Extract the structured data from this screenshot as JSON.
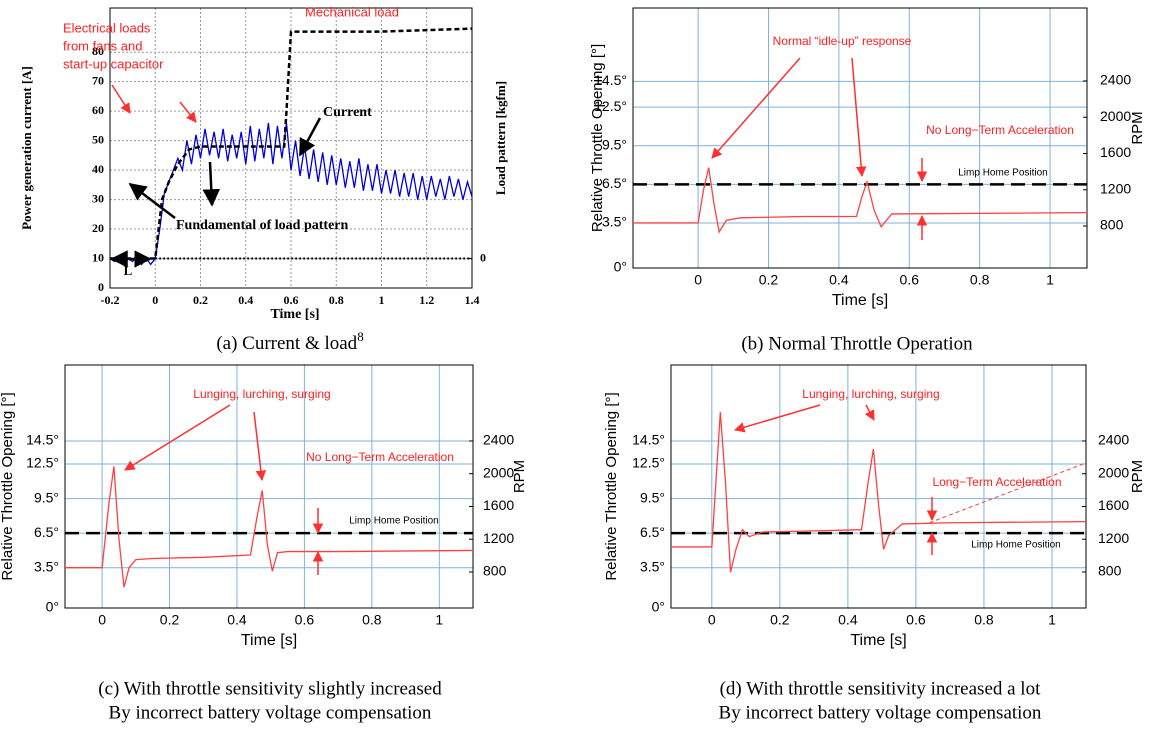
{
  "chart_data": [
    {
      "type": "line",
      "xlabel": "Time [s]",
      "ylabel": "Power generation current [A]",
      "y2label": "Load pattern [kgfm]",
      "caption": [
        "(a) Current & load",
        "8"
      ],
      "xlim": [
        -0.2,
        1.4
      ],
      "xticks": [
        -0.2,
        0,
        0.2,
        0.4,
        0.6,
        0.8,
        1,
        1.2,
        1.4
      ],
      "ylim": [
        0,
        95
      ],
      "yticks": [
        0,
        10,
        20,
        30,
        40,
        50,
        60,
        70,
        80
      ],
      "y2lim": [
        -10,
        85
      ],
      "y2ticks": [
        0
      ],
      "grid": true,
      "grid_color": "#999999",
      "annotations": [
        "Electrical loads",
        "from fans and",
        "start-up capacitor",
        "Mechanical  load",
        "Current",
        "Fundamental of load pattern",
        "L"
      ],
      "series": [
        {
          "color": "#0000dd",
          "dash": false,
          "x": [
            -0.2,
            -0.18,
            -0.16,
            -0.14,
            -0.12,
            -0.1,
            -0.08,
            -0.06,
            -0.04,
            -0.02,
            0,
            0.02,
            0.04,
            0.06,
            0.08,
            0.1,
            0.12,
            0.14,
            0.16,
            0.18,
            0.2,
            0.22,
            0.24,
            0.26,
            0.28,
            0.3,
            0.32,
            0.34,
            0.36,
            0.38,
            0.4,
            0.42,
            0.44,
            0.46,
            0.48,
            0.5,
            0.52,
            0.54,
            0.56,
            0.58,
            0.6,
            0.62,
            0.64,
            0.66,
            0.68,
            0.7,
            0.72,
            0.74,
            0.76,
            0.78,
            0.8,
            0.82,
            0.84,
            0.86,
            0.88,
            0.9,
            0.92,
            0.94,
            0.96,
            0.98,
            1,
            1.02,
            1.04,
            1.06,
            1.08,
            1.1,
            1.12,
            1.14,
            1.16,
            1.18,
            1.2,
            1.22,
            1.24,
            1.26,
            1.28,
            1.3,
            1.32,
            1.34,
            1.36,
            1.38,
            1.4
          ],
          "values": [
            10,
            9,
            10,
            8,
            10,
            9,
            11,
            8,
            10,
            8,
            10,
            20,
            32,
            36,
            40,
            44,
            40,
            50,
            42,
            52,
            44,
            54,
            45,
            53,
            44,
            54,
            43,
            52,
            44,
            53,
            42,
            55,
            43,
            54,
            44,
            56,
            42,
            55,
            44,
            56,
            40,
            50,
            38,
            48,
            37,
            47,
            36,
            46,
            35,
            45,
            35,
            44,
            34,
            43,
            34,
            44,
            33,
            42,
            33,
            42,
            32,
            40,
            32,
            40,
            31,
            39,
            31,
            39,
            30,
            38,
            30,
            38,
            31,
            37,
            30,
            38,
            31,
            37,
            30,
            36,
            31
          ]
        },
        {
          "color": "#000000",
          "dash": true,
          "x": [
            -0.2,
            0,
            0.03,
            0.06,
            0.1,
            0.15,
            0.2,
            0.57,
            0.58,
            0.6,
            1.0,
            1.4
          ],
          "values": [
            10,
            10,
            30,
            36,
            42,
            47,
            48,
            48,
            60,
            87,
            87,
            88
          ]
        }
      ]
    },
    {
      "type": "line",
      "xlabel": "Time [s]",
      "ylabel": "Relative Throttle Opening [°]",
      "y2label": "RPM",
      "caption": [
        "(b) Normal Throttle Operation"
      ],
      "xlim": [
        -0.185,
        1.105
      ],
      "xticks": [
        0,
        0.2,
        0.4,
        0.6,
        0.8,
        1
      ],
      "ylim": [
        0,
        20.2
      ],
      "yticks": [
        {
          "value": 0,
          "label": "0°"
        },
        {
          "value": 3.5,
          "label": "3.5°"
        },
        {
          "value": 6.5,
          "label": "6.5°"
        },
        {
          "value": 9.5,
          "label": "9.5°"
        },
        {
          "value": 12.5,
          "label": "12.5°"
        },
        {
          "value": 14.5,
          "label": "14.5°"
        }
      ],
      "y2lim": [
        337,
        3205
      ],
      "y2ticks": [
        800,
        1200,
        1600,
        2000,
        2400
      ],
      "grid": true,
      "grid_color": "#7fb2dd",
      "hline": 6.5,
      "annotations": [
        "Normal “idle-up” response",
        "No Long−Term Acceleration",
        "Limp Home Position"
      ],
      "series": [
        {
          "color": "#ff4040",
          "dash": false,
          "x": [
            -0.185,
            0,
            0.015,
            0.03,
            0.045,
            0.06,
            0.08,
            0.12,
            0.3,
            0.45,
            0.465,
            0.48,
            0.5,
            0.52,
            0.55,
            1.105
          ],
          "values": [
            3.5,
            3.5,
            6,
            7.8,
            5,
            2.8,
            3.7,
            3.9,
            4.0,
            4.0,
            5.5,
            6.7,
            4.5,
            3.2,
            4.2,
            4.3
          ]
        }
      ]
    },
    {
      "type": "line",
      "xlabel": "Time [s]",
      "ylabel": "Relative Throttle Opening [°]",
      "y2label": "RPM",
      "caption": [
        "(c) With throttle sensitivity slightly increased",
        "By incorrect battery voltage compensation"
      ],
      "xlim": [
        -0.11,
        1.1
      ],
      "xticks": [
        0,
        0.2,
        0.4,
        0.6,
        0.8,
        1
      ],
      "ylim": [
        0,
        21.1
      ],
      "yticks": [
        {
          "value": 0,
          "label": "0°"
        },
        {
          "value": 3.5,
          "label": "3.5°"
        },
        {
          "value": 6.5,
          "label": "6.5°"
        },
        {
          "value": 9.5,
          "label": "9.5°"
        },
        {
          "value": 12.5,
          "label": "12.5°"
        },
        {
          "value": 14.5,
          "label": "14.5°"
        }
      ],
      "y2lim": [
        360,
        3328
      ],
      "y2ticks": [
        800,
        1200,
        1600,
        2000,
        2400
      ],
      "grid": true,
      "grid_color": "#7fb2dd",
      "hline": 6.5,
      "annotations": [
        "Lunging, lurching, surging",
        "No Long−Term Acceleration",
        "Limp Home Position"
      ],
      "series": [
        {
          "color": "#ff4040",
          "dash": false,
          "x": [
            -0.11,
            0,
            0.02,
            0.035,
            0.05,
            0.065,
            0.08,
            0.1,
            0.15,
            0.3,
            0.44,
            0.46,
            0.475,
            0.49,
            0.505,
            0.52,
            0.55,
            0.7,
            1.1
          ],
          "values": [
            3.5,
            3.5,
            9,
            12.3,
            6,
            1.8,
            3.5,
            4.2,
            4.3,
            4.4,
            4.6,
            8,
            10.2,
            5.5,
            3.2,
            4.8,
            4.9,
            4.9,
            5.0
          ]
        }
      ]
    },
    {
      "type": "line",
      "xlabel": "Time [s]",
      "ylabel": "Relative Throttle Opening [°]",
      "y2label": "RPM",
      "caption": [
        "(d) With throttle sensitivity increased a lot",
        "By incorrect battery voltage compensation"
      ],
      "xlim": [
        -0.12,
        1.1
      ],
      "xticks": [
        0,
        0.2,
        0.4,
        0.6,
        0.8,
        1
      ],
      "ylim": [
        0,
        21.1
      ],
      "yticks": [
        {
          "value": 0,
          "label": "0°"
        },
        {
          "value": 3.5,
          "label": "3.5°"
        },
        {
          "value": 6.5,
          "label": "6.5°"
        },
        {
          "value": 9.5,
          "label": "9.5°"
        },
        {
          "value": 12.5,
          "label": "12.5°"
        },
        {
          "value": 14.5,
          "label": "14.5°"
        }
      ],
      "y2lim": [
        360,
        3328
      ],
      "y2ticks": [
        800,
        1200,
        1600,
        2000,
        2400
      ],
      "grid": true,
      "grid_color": "#7fb2dd",
      "hline": 6.5,
      "annotations": [
        "Lunging, lurching, surging",
        "Long−Term Acceleration",
        "Limp Home Position"
      ],
      "series": [
        {
          "color": "#ff4040",
          "dash": false,
          "x": [
            -0.12,
            0,
            0.01,
            0.025,
            0.04,
            0.055,
            0.07,
            0.09,
            0.11,
            0.15,
            0.3,
            0.44,
            0.46,
            0.475,
            0.49,
            0.505,
            0.52,
            0.56,
            0.7,
            1.1
          ],
          "values": [
            5.3,
            5.3,
            10,
            17,
            11,
            3.1,
            5,
            6.8,
            6.2,
            6.6,
            6.7,
            6.8,
            11,
            13.8,
            9,
            5.1,
            6.3,
            7.3,
            7.4,
            7.5
          ]
        }
      ]
    }
  ]
}
